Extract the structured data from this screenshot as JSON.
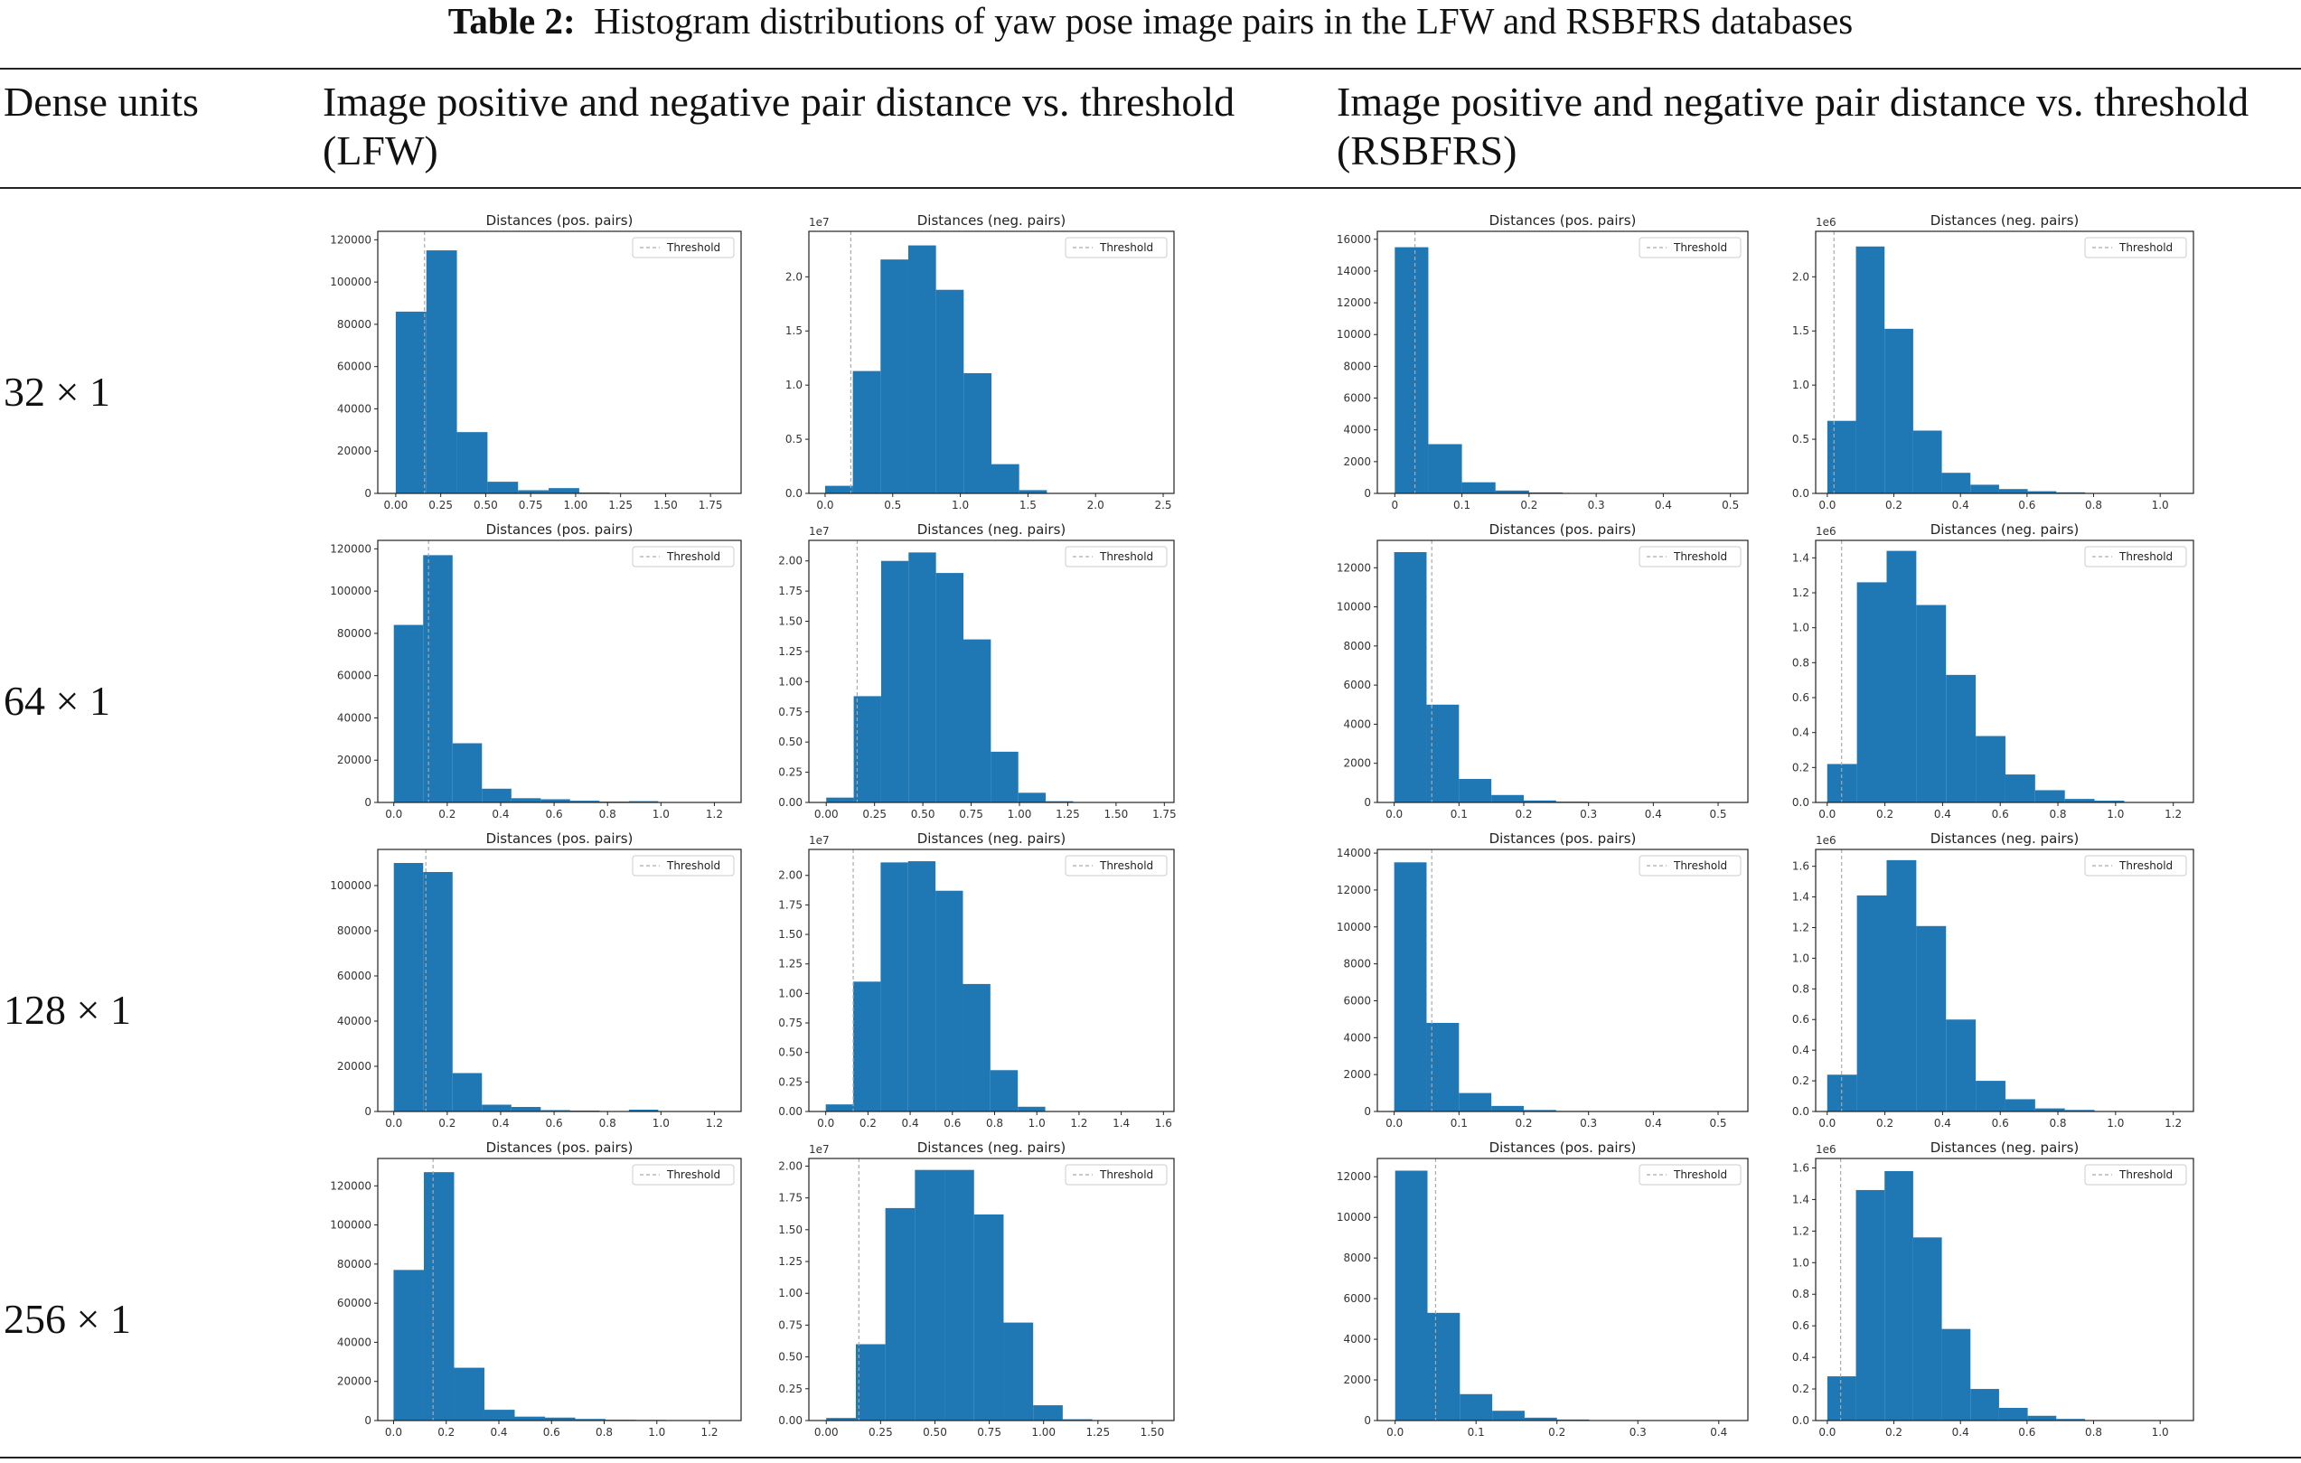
{
  "caption": {
    "label": "Table 2:",
    "text": "Histogram distributions of yaw pose image pairs in the LFW and RSBFRS databases"
  },
  "headers": {
    "dense_units": "Dense units",
    "lfw_line1": "Image positive and negative pair distance vs. threshold",
    "lfw_line2": "(LFW)",
    "rsbfrs_line1": "Image positive and negative pair distance vs. threshold",
    "rsbfrs_line2": "(RSBFRS)"
  },
  "rows": [
    {
      "label": "32 × 1"
    },
    {
      "label": "64 × 1"
    },
    {
      "label": "128 × 1"
    },
    {
      "label": "256 × 1"
    }
  ],
  "colors": {
    "bar": "#1f77b4",
    "threshold": "#aaaaaa"
  },
  "chart_data": [
    {
      "type": "bar",
      "row": 0,
      "col": 0,
      "title": "Distances (pos. pairs)",
      "legend": "Threshold",
      "legend_position": "top-right",
      "scale_label": "",
      "xlim": [
        -0.1,
        1.92
      ],
      "ylim": [
        0,
        124000
      ],
      "xticks": [
        0,
        0.25,
        0.5,
        0.75,
        1,
        1.25,
        1.5,
        1.75
      ],
      "xtick_labels": [
        "0.00",
        "0.25",
        "0.50",
        "0.75",
        "1.00",
        "1.25",
        "1.50",
        "1.75"
      ],
      "yticks": [
        0,
        20000,
        40000,
        60000,
        80000,
        100000,
        120000
      ],
      "ytick_labels": [
        "0",
        "20000",
        "40000",
        "60000",
        "80000",
        "100000",
        "120000"
      ],
      "bin_edges": [
        0,
        0.17,
        0.34,
        0.51,
        0.68,
        0.85,
        1.02,
        1.19,
        1.36,
        1.53,
        1.7
      ],
      "values": [
        86000,
        115000,
        29000,
        5500,
        1500,
        2500,
        400,
        200,
        100,
        50
      ],
      "threshold": 0.16
    },
    {
      "type": "bar",
      "row": 0,
      "col": 1,
      "title": "Distances (neg. pairs)",
      "legend": "Threshold",
      "legend_position": "top-right",
      "scale_label": "1e7",
      "xlim": [
        -0.12,
        2.58
      ],
      "ylim": [
        0,
        2.42
      ],
      "xticks": [
        0,
        0.5,
        1,
        1.5,
        2,
        2.5
      ],
      "xtick_labels": [
        "0.0",
        "0.5",
        "1.0",
        "1.5",
        "2.0",
        "2.5"
      ],
      "yticks": [
        0,
        0.5,
        1,
        1.5,
        2
      ],
      "ytick_labels": [
        "0.0",
        "0.5",
        "1.0",
        "1.5",
        "2.0"
      ],
      "bin_edges": [
        0,
        0.205,
        0.41,
        0.615,
        0.82,
        1.025,
        1.23,
        1.435,
        1.64,
        1.845,
        2.05
      ],
      "values": [
        0.07,
        1.13,
        2.16,
        2.29,
        1.88,
        1.11,
        0.27,
        0.03,
        0,
        0
      ],
      "threshold": 0.19
    },
    {
      "type": "bar",
      "row": 0,
      "col": 2,
      "title": "Distances (pos. pairs)",
      "legend": "Threshold",
      "legend_position": "top-right",
      "scale_label": "",
      "xlim": [
        -0.026,
        0.526
      ],
      "ylim": [
        0,
        16500
      ],
      "xticks": [
        0,
        0.1,
        0.2,
        0.3,
        0.4,
        0.5
      ],
      "xtick_labels": [
        "0",
        "0.1",
        "0.2",
        "0.3",
        "0.4",
        "0.5"
      ],
      "yticks": [
        0,
        2000,
        4000,
        6000,
        8000,
        10000,
        12000,
        14000,
        16000
      ],
      "ytick_labels": [
        "0",
        "2000",
        "4000",
        "6000",
        "8000",
        "10000",
        "12000",
        "14000",
        "16000"
      ],
      "bin_edges": [
        0,
        0.05,
        0.1,
        0.15,
        0.2,
        0.25,
        0.3,
        0.35,
        0.4,
        0.45,
        0.5
      ],
      "values": [
        15500,
        3100,
        700,
        180,
        60,
        20,
        10,
        5,
        0,
        0
      ],
      "threshold": 0.03
    },
    {
      "type": "bar",
      "row": 0,
      "col": 3,
      "title": "Distances (neg. pairs)",
      "legend": "Threshold",
      "legend_position": "top-right",
      "scale_label": "1e6",
      "xlim": [
        -0.035,
        1.1
      ],
      "ylim": [
        0,
        2.42
      ],
      "xticks": [
        0,
        0.2,
        0.4,
        0.6,
        0.8,
        1
      ],
      "xtick_labels": [
        "0.0",
        "0.2",
        "0.4",
        "0.6",
        "0.8",
        "1.0"
      ],
      "yticks": [
        0,
        0.5,
        1,
        1.5,
        2
      ],
      "ytick_labels": [
        "0.0",
        "0.5",
        "1.0",
        "1.5",
        "2.0"
      ],
      "bin_edges": [
        0,
        0.086,
        0.172,
        0.258,
        0.344,
        0.43,
        0.516,
        0.602,
        0.688,
        0.774,
        0.86
      ],
      "values": [
        0.67,
        2.28,
        1.52,
        0.58,
        0.19,
        0.08,
        0.04,
        0.02,
        0.01,
        0
      ],
      "threshold": 0.02
    },
    {
      "type": "bar",
      "row": 1,
      "col": 0,
      "title": "Distances (pos. pairs)",
      "legend": "Threshold",
      "legend_position": "top-right",
      "scale_label": "",
      "xlim": [
        -0.06,
        1.3
      ],
      "ylim": [
        0,
        124000
      ],
      "xticks": [
        0,
        0.2,
        0.4,
        0.6,
        0.8,
        1,
        1.2
      ],
      "xtick_labels": [
        "0.0",
        "0.2",
        "0.4",
        "0.6",
        "0.8",
        "1.0",
        "1.2"
      ],
      "yticks": [
        0,
        20000,
        40000,
        60000,
        80000,
        100000,
        120000
      ],
      "ytick_labels": [
        "0",
        "20000",
        "40000",
        "60000",
        "80000",
        "100000",
        "120000"
      ],
      "bin_edges": [
        0,
        0.11,
        0.22,
        0.33,
        0.44,
        0.55,
        0.66,
        0.77,
        0.88,
        0.99,
        1.1
      ],
      "values": [
        84000,
        117000,
        28000,
        6500,
        2000,
        1500,
        800,
        400,
        600,
        100
      ],
      "threshold": 0.13
    },
    {
      "type": "bar",
      "row": 1,
      "col": 1,
      "title": "Distances (neg. pairs)",
      "legend": "Threshold",
      "legend_position": "top-right",
      "scale_label": "1e7",
      "xlim": [
        -0.09,
        1.8
      ],
      "ylim": [
        0,
        2.17
      ],
      "xticks": [
        0,
        0.25,
        0.5,
        0.75,
        1,
        1.25,
        1.5,
        1.75
      ],
      "xtick_labels": [
        "0.00",
        "0.25",
        "0.50",
        "0.75",
        "1.00",
        "1.25",
        "1.50",
        "1.75"
      ],
      "yticks": [
        0,
        0.25,
        0.5,
        0.75,
        1,
        1.25,
        1.5,
        1.75,
        2
      ],
      "ytick_labels": [
        "0.00",
        "0.25",
        "0.50",
        "0.75",
        "1.00",
        "1.25",
        "1.50",
        "1.75",
        "2.00"
      ],
      "bin_edges": [
        0,
        0.142,
        0.284,
        0.426,
        0.568,
        0.71,
        0.852,
        0.994,
        1.136,
        1.278,
        1.42
      ],
      "values": [
        0.04,
        0.88,
        2.0,
        2.07,
        1.9,
        1.35,
        0.42,
        0.08,
        0.01,
        0
      ],
      "threshold": 0.16
    },
    {
      "type": "bar",
      "row": 1,
      "col": 2,
      "title": "Distances (pos. pairs)",
      "legend": "Threshold",
      "legend_position": "top-right",
      "scale_label": "",
      "xlim": [
        -0.026,
        0.546
      ],
      "ylim": [
        0,
        13400
      ],
      "xticks": [
        0,
        0.1,
        0.2,
        0.3,
        0.4,
        0.5
      ],
      "xtick_labels": [
        "0.0",
        "0.1",
        "0.2",
        "0.3",
        "0.4",
        "0.5"
      ],
      "yticks": [
        0,
        2000,
        4000,
        6000,
        8000,
        10000,
        12000
      ],
      "ytick_labels": [
        "0",
        "2000",
        "4000",
        "6000",
        "8000",
        "10000",
        "12000"
      ],
      "bin_edges": [
        0,
        0.05,
        0.1,
        0.15,
        0.2,
        0.25,
        0.3,
        0.35,
        0.4,
        0.45,
        0.5
      ],
      "values": [
        12800,
        5000,
        1200,
        380,
        100,
        40,
        20,
        10,
        0,
        0
      ],
      "threshold": 0.058
    },
    {
      "type": "bar",
      "row": 1,
      "col": 3,
      "title": "Distances (neg. pairs)",
      "legend": "Threshold",
      "legend_position": "top-right",
      "scale_label": "1e6",
      "xlim": [
        -0.04,
        1.27
      ],
      "ylim": [
        0,
        1.5
      ],
      "xticks": [
        0,
        0.2,
        0.4,
        0.6,
        0.8,
        1,
        1.2
      ],
      "xtick_labels": [
        "0.0",
        "0.2",
        "0.4",
        "0.6",
        "0.8",
        "1.0",
        "1.2"
      ],
      "yticks": [
        0,
        0.2,
        0.4,
        0.6,
        0.8,
        1,
        1.2,
        1.4
      ],
      "ytick_labels": [
        "0.0",
        "0.2",
        "0.4",
        "0.6",
        "0.8",
        "1.0",
        "1.2",
        "1.4"
      ],
      "bin_edges": [
        0,
        0.103,
        0.206,
        0.309,
        0.412,
        0.515,
        0.618,
        0.721,
        0.824,
        0.927,
        1.03
      ],
      "values": [
        0.22,
        1.26,
        1.44,
        1.13,
        0.73,
        0.38,
        0.16,
        0.07,
        0.02,
        0.01
      ],
      "threshold": 0.05
    },
    {
      "type": "bar",
      "row": 2,
      "col": 0,
      "title": "Distances (pos. pairs)",
      "legend": "Threshold",
      "legend_position": "top-right",
      "scale_label": "",
      "xlim": [
        -0.06,
        1.3
      ],
      "ylim": [
        0,
        116000
      ],
      "xticks": [
        0,
        0.2,
        0.4,
        0.6,
        0.8,
        1,
        1.2
      ],
      "xtick_labels": [
        "0.0",
        "0.2",
        "0.4",
        "0.6",
        "0.8",
        "1.0",
        "1.2"
      ],
      "yticks": [
        0,
        20000,
        40000,
        60000,
        80000,
        100000
      ],
      "ytick_labels": [
        "0",
        "20000",
        "40000",
        "60000",
        "80000",
        "100000"
      ],
      "bin_edges": [
        0,
        0.11,
        0.22,
        0.33,
        0.44,
        0.55,
        0.66,
        0.77,
        0.88,
        0.99,
        1.1
      ],
      "values": [
        110000,
        106000,
        17000,
        3000,
        2000,
        600,
        400,
        200,
        800,
        100
      ],
      "threshold": 0.12
    },
    {
      "type": "bar",
      "row": 2,
      "col": 1,
      "title": "Distances (neg. pairs)",
      "legend": "Threshold",
      "legend_position": "top-right",
      "scale_label": "1e7",
      "xlim": [
        -0.08,
        1.65
      ],
      "ylim": [
        0,
        2.22
      ],
      "xticks": [
        0,
        0.2,
        0.4,
        0.6,
        0.8,
        1,
        1.2,
        1.4,
        1.6
      ],
      "xtick_labels": [
        "0.0",
        "0.2",
        "0.4",
        "0.6",
        "0.8",
        "1.0",
        "1.2",
        "1.4",
        "1.6"
      ],
      "yticks": [
        0,
        0.25,
        0.5,
        0.75,
        1,
        1.25,
        1.5,
        1.75,
        2
      ],
      "ytick_labels": [
        "0.00",
        "0.25",
        "0.50",
        "0.75",
        "1.00",
        "1.25",
        "1.50",
        "1.75",
        "2.00"
      ],
      "bin_edges": [
        0,
        0.13,
        0.26,
        0.39,
        0.52,
        0.65,
        0.78,
        0.91,
        1.04,
        1.17,
        1.3
      ],
      "values": [
        0.06,
        1.1,
        2.11,
        2.12,
        1.87,
        1.08,
        0.35,
        0.04,
        0,
        0
      ],
      "threshold": 0.13
    },
    {
      "type": "bar",
      "row": 2,
      "col": 2,
      "title": "Distances (pos. pairs)",
      "legend": "Threshold",
      "legend_position": "top-right",
      "scale_label": "",
      "xlim": [
        -0.026,
        0.546
      ],
      "ylim": [
        0,
        14200
      ],
      "xticks": [
        0,
        0.1,
        0.2,
        0.3,
        0.4,
        0.5
      ],
      "xtick_labels": [
        "0.0",
        "0.1",
        "0.2",
        "0.3",
        "0.4",
        "0.5"
      ],
      "yticks": [
        0,
        2000,
        4000,
        6000,
        8000,
        10000,
        12000,
        14000
      ],
      "ytick_labels": [
        "0",
        "2000",
        "4000",
        "6000",
        "8000",
        "10000",
        "12000",
        "14000"
      ],
      "bin_edges": [
        0,
        0.05,
        0.1,
        0.15,
        0.2,
        0.25,
        0.3,
        0.35,
        0.4,
        0.45,
        0.5
      ],
      "values": [
        13500,
        4800,
        1000,
        300,
        80,
        30,
        10,
        5,
        0,
        0
      ],
      "threshold": 0.058
    },
    {
      "type": "bar",
      "row": 2,
      "col": 3,
      "title": "Distances (neg. pairs)",
      "legend": "Threshold",
      "legend_position": "top-right",
      "scale_label": "1e6",
      "xlim": [
        -0.04,
        1.27
      ],
      "ylim": [
        0,
        1.71
      ],
      "xticks": [
        0,
        0.2,
        0.4,
        0.6,
        0.8,
        1,
        1.2
      ],
      "xtick_labels": [
        "0.0",
        "0.2",
        "0.4",
        "0.6",
        "0.8",
        "1.0",
        "1.2"
      ],
      "yticks": [
        0,
        0.2,
        0.4,
        0.6,
        0.8,
        1,
        1.2,
        1.4,
        1.6
      ],
      "ytick_labels": [
        "0.0",
        "0.2",
        "0.4",
        "0.6",
        "0.8",
        "1.0",
        "1.2",
        "1.4",
        "1.6"
      ],
      "bin_edges": [
        0,
        0.103,
        0.206,
        0.309,
        0.412,
        0.515,
        0.618,
        0.721,
        0.824,
        0.927,
        1.03
      ],
      "values": [
        0.24,
        1.41,
        1.64,
        1.21,
        0.6,
        0.2,
        0.08,
        0.02,
        0.01,
        0
      ],
      "threshold": 0.05
    },
    {
      "type": "bar",
      "row": 3,
      "col": 0,
      "title": "Distances (pos. pairs)",
      "legend": "Threshold",
      "legend_position": "top-right",
      "scale_label": "",
      "xlim": [
        -0.06,
        1.32
      ],
      "ylim": [
        0,
        134000
      ],
      "xticks": [
        0,
        0.2,
        0.4,
        0.6,
        0.8,
        1,
        1.2
      ],
      "xtick_labels": [
        "0.0",
        "0.2",
        "0.4",
        "0.6",
        "0.8",
        "1.0",
        "1.2"
      ],
      "yticks": [
        0,
        20000,
        40000,
        60000,
        80000,
        100000,
        120000
      ],
      "ytick_labels": [
        "0",
        "20000",
        "40000",
        "60000",
        "80000",
        "100000",
        "120000"
      ],
      "bin_edges": [
        0,
        0.115,
        0.23,
        0.345,
        0.46,
        0.575,
        0.69,
        0.805,
        0.92,
        1.035,
        1.15
      ],
      "values": [
        77000,
        127000,
        27000,
        5500,
        2000,
        1500,
        800,
        400,
        300,
        100
      ],
      "threshold": 0.15
    },
    {
      "type": "bar",
      "row": 3,
      "col": 1,
      "title": "Distances (neg. pairs)",
      "legend": "Threshold",
      "legend_position": "top-right",
      "scale_label": "1e7",
      "xlim": [
        -0.08,
        1.6
      ],
      "ylim": [
        0,
        2.06
      ],
      "xticks": [
        0,
        0.25,
        0.5,
        0.75,
        1,
        1.25,
        1.5
      ],
      "xtick_labels": [
        "0.00",
        "0.25",
        "0.50",
        "0.75",
        "1.00",
        "1.25",
        "1.50"
      ],
      "yticks": [
        0,
        0.25,
        0.5,
        0.75,
        1,
        1.25,
        1.5,
        1.75,
        2
      ],
      "ytick_labels": [
        "0.00",
        "0.25",
        "0.50",
        "0.75",
        "1.00",
        "1.25",
        "1.50",
        "1.75",
        "2.00"
      ],
      "bin_edges": [
        0,
        0.136,
        0.272,
        0.408,
        0.544,
        0.68,
        0.816,
        0.952,
        1.088,
        1.224,
        1.36
      ],
      "values": [
        0.02,
        0.6,
        1.67,
        1.97,
        1.97,
        1.62,
        0.77,
        0.12,
        0.01,
        0
      ],
      "threshold": 0.15
    },
    {
      "type": "bar",
      "row": 3,
      "col": 2,
      "title": "Distances (pos. pairs)",
      "legend": "Threshold",
      "legend_position": "top-right",
      "scale_label": "",
      "xlim": [
        -0.022,
        0.436
      ],
      "ylim": [
        0,
        12900
      ],
      "xticks": [
        0,
        0.1,
        0.2,
        0.3,
        0.4
      ],
      "xtick_labels": [
        "0.0",
        "0.1",
        "0.2",
        "0.3",
        "0.4"
      ],
      "yticks": [
        0,
        2000,
        4000,
        6000,
        8000,
        10000,
        12000
      ],
      "ytick_labels": [
        "0",
        "2000",
        "4000",
        "6000",
        "8000",
        "10000",
        "12000"
      ],
      "bin_edges": [
        0,
        0.04,
        0.08,
        0.12,
        0.16,
        0.2,
        0.24,
        0.28,
        0.32,
        0.36,
        0.4
      ],
      "values": [
        12300,
        5300,
        1300,
        480,
        140,
        50,
        20,
        10,
        5,
        0
      ],
      "threshold": 0.05
    },
    {
      "type": "bar",
      "row": 3,
      "col": 3,
      "title": "Distances (neg. pairs)",
      "legend": "Threshold",
      "legend_position": "top-right",
      "scale_label": "1e6",
      "xlim": [
        -0.035,
        1.1
      ],
      "ylim": [
        0,
        1.66
      ],
      "xticks": [
        0,
        0.2,
        0.4,
        0.6,
        0.8,
        1
      ],
      "xtick_labels": [
        "0.0",
        "0.2",
        "0.4",
        "0.6",
        "0.8",
        "1.0"
      ],
      "yticks": [
        0,
        0.2,
        0.4,
        0.6,
        0.8,
        1,
        1.2,
        1.4,
        1.6
      ],
      "ytick_labels": [
        "0.0",
        "0.2",
        "0.4",
        "0.6",
        "0.8",
        "1.0",
        "1.2",
        "1.4",
        "1.6"
      ],
      "bin_edges": [
        0,
        0.086,
        0.172,
        0.258,
        0.344,
        0.43,
        0.516,
        0.602,
        0.688,
        0.774,
        0.86
      ],
      "values": [
        0.28,
        1.46,
        1.58,
        1.16,
        0.58,
        0.2,
        0.08,
        0.03,
        0.01,
        0
      ],
      "threshold": 0.04
    }
  ]
}
